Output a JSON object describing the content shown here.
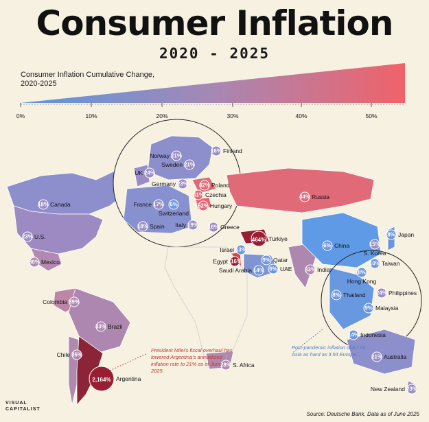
{
  "title": "Consumer Inflation",
  "subtitle": "2020 - 2025",
  "legend": {
    "label": "Consumer Inflation Cumulative Change, 2020-2025",
    "ticks": [
      "0%",
      "10%",
      "20%",
      "30%",
      "40%",
      "50%"
    ],
    "colors": {
      "low": "#5b95e0",
      "mid": "#a688b4",
      "high": "#f0626a"
    }
  },
  "countries": [
    {
      "name": "Canada",
      "value": "18%"
    },
    {
      "name": "U.S.",
      "value": "23%"
    },
    {
      "name": "Mexico",
      "value": "30%"
    },
    {
      "name": "Colombia",
      "value": "39%"
    },
    {
      "name": "Brazil",
      "value": "33%"
    },
    {
      "name": "Chile",
      "value": "35%"
    },
    {
      "name": "Argentina",
      "value": "2,164%"
    },
    {
      "name": "Norway",
      "value": "21%"
    },
    {
      "name": "Sweden",
      "value": "21%"
    },
    {
      "name": "Finland",
      "value": "16%"
    },
    {
      "name": "UK",
      "value": "24%"
    },
    {
      "name": "Germany",
      "value": "23%"
    },
    {
      "name": "Poland",
      "value": "42%"
    },
    {
      "name": "Czechia",
      "value": "41%"
    },
    {
      "name": "France",
      "value": "17%"
    },
    {
      "name": "Switzerland",
      "value": "6%"
    },
    {
      "name": "Hungary",
      "value": "52%"
    },
    {
      "name": "Spain",
      "value": "18%"
    },
    {
      "name": "Italy",
      "value": "19%"
    },
    {
      "name": "Greece",
      "value": "16%"
    },
    {
      "name": "Türkiye",
      "value": "464%"
    },
    {
      "name": "Russia",
      "value": "44%"
    },
    {
      "name": "Israel",
      "value": "13%"
    },
    {
      "name": "Egypt",
      "value": "116%"
    },
    {
      "name": "Saudi Arabia",
      "value": "14%"
    },
    {
      "name": "Qatar",
      "value": "9%"
    },
    {
      "name": "UAE",
      "value": "6%"
    },
    {
      "name": "India",
      "value": "33%"
    },
    {
      "name": "China",
      "value": "6%"
    },
    {
      "name": "Japan",
      "value": "8%"
    },
    {
      "name": "S. Korea",
      "value": "15%"
    },
    {
      "name": "Taiwan",
      "value": "10%"
    },
    {
      "name": "Hong Kong",
      "value": "8%"
    },
    {
      "name": "Thailand",
      "value": "8%"
    },
    {
      "name": "Philippines",
      "value": "24%"
    },
    {
      "name": "Malaysia",
      "value": "9%"
    },
    {
      "name": "Indonesia",
      "value": "14%"
    },
    {
      "name": "Australia",
      "value": "21%"
    },
    {
      "name": "New Zealand",
      "value": "23%"
    },
    {
      "name": "S. Africa",
      "value": "28%"
    }
  ],
  "notes": {
    "argentina": "President Milei's fiscal overhaul has lowered Argentina's annualized inflation rate to 21% as of June 2025.",
    "asia": "Post-pandemic inflation didn't hit Asia as hard as it hit Europe."
  },
  "logo": {
    "line1": "VISUAL",
    "line2": "CAPITALIST"
  },
  "source": "Source: Deutsche Bank, Data as of June 2025"
}
